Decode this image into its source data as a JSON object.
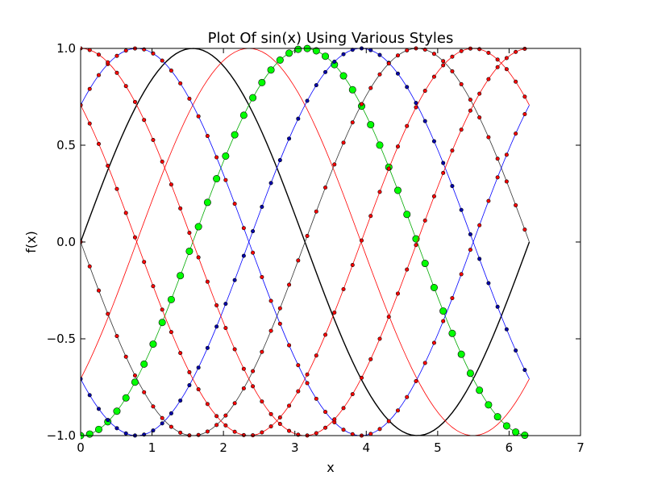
{
  "chart_data": {
    "type": "line",
    "title": "Plot Of sin(x) Using Various Styles",
    "xlabel": "x",
    "ylabel": "f(x)",
    "xlim": [
      0,
      7
    ],
    "ylim": [
      -1.0,
      1.0
    ],
    "x_ticks": [
      "0",
      "1",
      "2",
      "3",
      "4",
      "5",
      "6",
      "7"
    ],
    "y_ticks": [
      "−1.0",
      "−0.5",
      "0.0",
      "0.5",
      "1.0"
    ],
    "grid": false,
    "legend": "none",
    "x_range": [
      0,
      6.283
    ],
    "series": [
      {
        "function": "sin(x)",
        "phase": 0.0,
        "color": "#000000",
        "marker": "none",
        "line_color": "#000000"
      },
      {
        "function": "sin(x - 0.785)",
        "phase": -0.785,
        "color": "#ff0000",
        "marker": "none",
        "line_color": "#ff0000"
      },
      {
        "function": "sin(x - 1.571)",
        "phase": -1.571,
        "color": "#00ff00",
        "marker": "circle-large",
        "line_color": "#00aa00"
      },
      {
        "function": "sin(x - 2.356)",
        "phase": -2.356,
        "color": "#0000aa",
        "marker": "circle-small",
        "line_color": "#0000ff"
      },
      {
        "function": "sin(x - 3.142)",
        "phase": -3.142,
        "color": "#ff0000",
        "marker": "circle-small",
        "line_color": "#333333"
      },
      {
        "function": "sin(x - 3.927)",
        "phase": -3.927,
        "color": "#ff0000",
        "marker": "circle-small",
        "line_color": "#ff0000"
      },
      {
        "function": "sin(x + 0.785)",
        "phase": 0.785,
        "color": "#ff0000",
        "marker": "circle-small",
        "line_color": "#0000ff"
      },
      {
        "function": "sin(x + 1.571)",
        "phase": 1.571,
        "color": "#ff0000",
        "marker": "circle-small",
        "line_color": "#ff0000"
      }
    ]
  }
}
